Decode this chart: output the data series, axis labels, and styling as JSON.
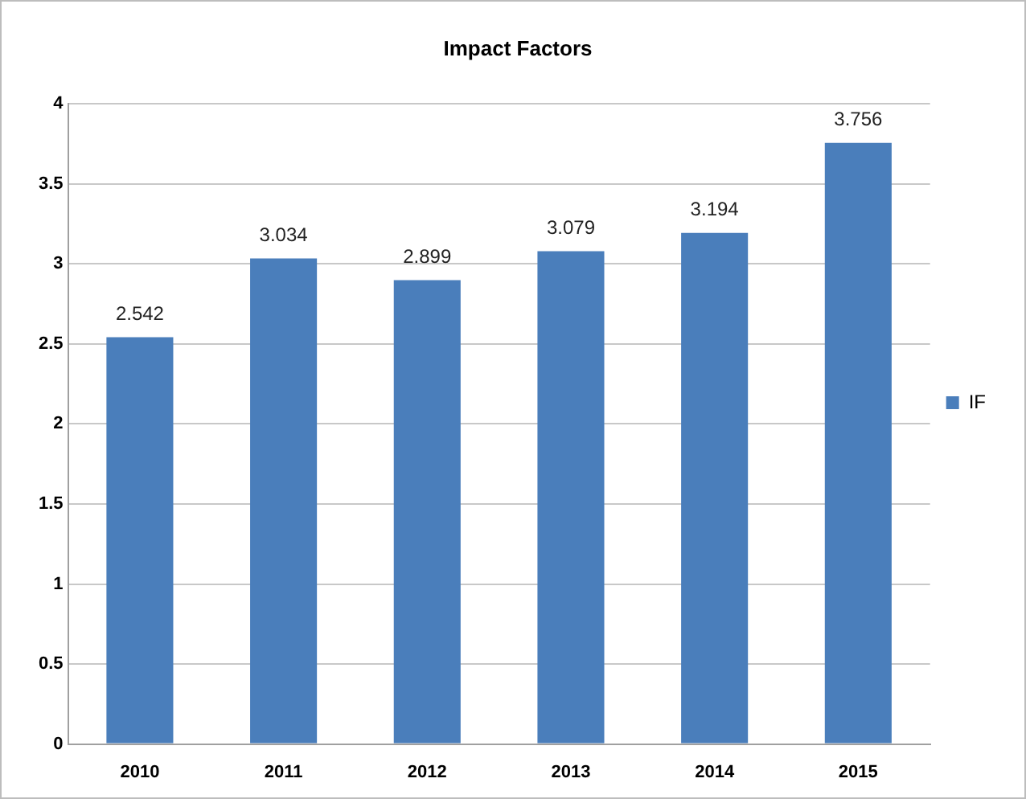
{
  "chart_data": {
    "type": "bar",
    "title": "Impact Factors",
    "categories": [
      "2010",
      "2011",
      "2012",
      "2013",
      "2014",
      "2015"
    ],
    "series": [
      {
        "name": "IF",
        "color": "#4a7ebb",
        "values": [
          2.542,
          3.034,
          2.899,
          3.079,
          3.194,
          3.756
        ]
      }
    ],
    "ylim": [
      0,
      4
    ],
    "yticks": [
      0,
      0.5,
      1,
      1.5,
      2,
      2.5,
      3,
      3.5,
      4
    ],
    "grid": "y",
    "legend": "right",
    "data_labels": true
  }
}
